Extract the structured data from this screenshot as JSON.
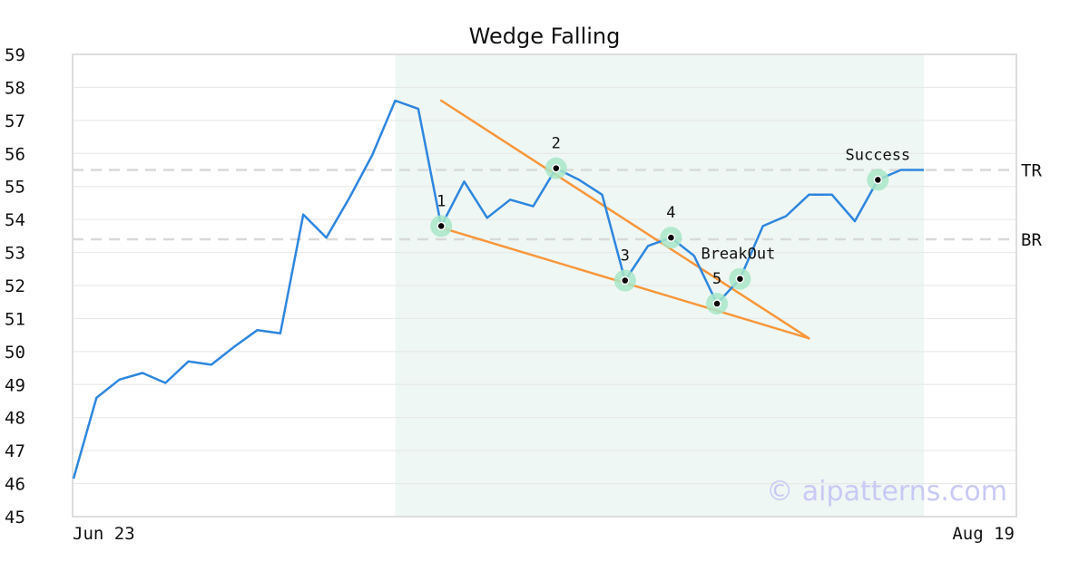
{
  "chart_data": {
    "type": "line",
    "title": "Wedge Falling",
    "xlabel": "",
    "ylabel": "",
    "ylim": [
      45,
      59
    ],
    "yticks": [
      45,
      46,
      47,
      48,
      49,
      50,
      51,
      52,
      53,
      54,
      55,
      56,
      57,
      58,
      59
    ],
    "x_tick_labels": [
      "Jun 23",
      "Aug 19"
    ],
    "grid": true,
    "series": [
      {
        "values": [
          46.15,
          48.6,
          49.15,
          49.35,
          49.05,
          49.7,
          49.6,
          50.15,
          50.65,
          50.55,
          54.15,
          53.45,
          54.65,
          55.95,
          57.6,
          57.35,
          53.8,
          55.15,
          54.05,
          54.6,
          54.4,
          55.55,
          55.2,
          54.75,
          52.15,
          53.2,
          53.45,
          52.9,
          51.45,
          52.2,
          53.8,
          54.1,
          54.75,
          54.75,
          53.95,
          55.2,
          55.5,
          55.5
        ]
      }
    ],
    "shaded_region": {
      "from_index": 14,
      "to_index": 37
    },
    "trendlines": [
      {
        "from": {
          "index": 16,
          "value": 57.6
        },
        "to": {
          "index": 32,
          "value": 50.4
        }
      },
      {
        "from": {
          "index": 16,
          "value": 53.75
        },
        "to": {
          "index": 32,
          "value": 50.4
        }
      }
    ],
    "pivots": [
      {
        "label": "1",
        "index": 16,
        "value": 53.8
      },
      {
        "label": "2",
        "index": 21,
        "value": 55.55
      },
      {
        "label": "3",
        "index": 24,
        "value": 52.15
      },
      {
        "label": "4",
        "index": 26,
        "value": 53.45
      },
      {
        "label": "5",
        "index": 28,
        "value": 51.45
      },
      {
        "label": "BreakOut",
        "index": 29,
        "value": 52.2
      },
      {
        "label": "Success",
        "index": 35,
        "value": 55.2
      }
    ],
    "reference_lines": [
      {
        "label": "TR",
        "value": 55.5
      },
      {
        "label": "BR",
        "value": 53.4
      }
    ],
    "watermark": "© aipatterns.com",
    "colors": {
      "line": "#2e86de",
      "trendline": "#f7963a",
      "shade": "#eef7f3",
      "pivot_ring": "#a8e6c8",
      "reference": "#d9d9d9",
      "grid": "#e6e6e6",
      "frame": "#dddddd",
      "watermark": "#c9c9f5"
    }
  }
}
